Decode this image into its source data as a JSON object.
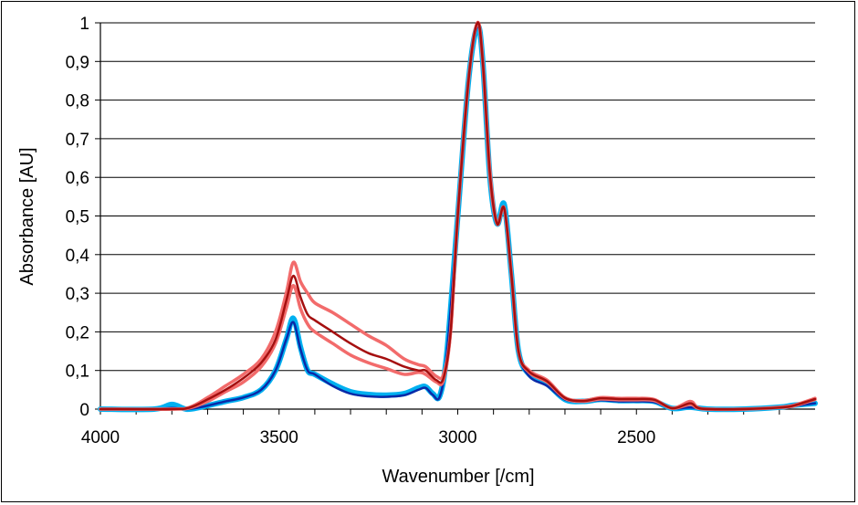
{
  "chart_data": {
    "type": "line",
    "title": "",
    "xlabel": "Wavenumber [/cm]",
    "ylabel": "Absorbance [AU]",
    "xlim": [
      4000,
      2000
    ],
    "ylim": [
      0,
      1
    ],
    "x_reversed": true,
    "grid": "horizontal",
    "legend": "none",
    "x_ticks": [
      4000,
      3500,
      3000,
      2500
    ],
    "x_tick_labels": [
      "4000",
      "3500",
      "3000",
      "2500"
    ],
    "y_ticks": [
      0,
      0.1,
      0.2,
      0.3,
      0.4,
      0.5,
      0.6,
      0.7,
      0.8,
      0.9,
      1
    ],
    "y_tick_labels": [
      "0",
      "0,1",
      "0,2",
      "0,3",
      "0,4",
      "0,5",
      "0,6",
      "0,7",
      "0,8",
      "0,9",
      "1"
    ],
    "series": [
      {
        "color": "#00b0f0",
        "width": 6,
        "points": [
          [
            4000,
            0
          ],
          [
            3850,
            0
          ],
          [
            3800,
            0.012
          ],
          [
            3760,
            0
          ],
          [
            3720,
            0.005
          ],
          [
            3650,
            0.02
          ],
          [
            3600,
            0.03
          ],
          [
            3550,
            0.05
          ],
          [
            3510,
            0.1
          ],
          [
            3480,
            0.18
          ],
          [
            3460,
            0.235
          ],
          [
            3440,
            0.16
          ],
          [
            3420,
            0.1
          ],
          [
            3400,
            0.09
          ],
          [
            3350,
            0.065
          ],
          [
            3300,
            0.045
          ],
          [
            3250,
            0.038
          ],
          [
            3200,
            0.036
          ],
          [
            3150,
            0.04
          ],
          [
            3110,
            0.055
          ],
          [
            3090,
            0.058
          ],
          [
            3070,
            0.04
          ],
          [
            3050,
            0.035
          ],
          [
            3030,
            0.15
          ],
          [
            3000,
            0.5
          ],
          [
            2970,
            0.85
          ],
          [
            2945,
            0.99
          ],
          [
            2930,
            0.9
          ],
          [
            2910,
            0.6
          ],
          [
            2890,
            0.48
          ],
          [
            2870,
            0.53
          ],
          [
            2850,
            0.35
          ],
          [
            2830,
            0.15
          ],
          [
            2800,
            0.09
          ],
          [
            2750,
            0.065
          ],
          [
            2700,
            0.025
          ],
          [
            2650,
            0.02
          ],
          [
            2600,
            0.025
          ],
          [
            2550,
            0.022
          ],
          [
            2500,
            0.022
          ],
          [
            2450,
            0.02
          ],
          [
            2400,
            0.002
          ],
          [
            2350,
            0.005
          ],
          [
            2300,
            0
          ],
          [
            2200,
            0
          ],
          [
            2100,
            0.005
          ],
          [
            2060,
            0.01
          ],
          [
            2000,
            0.015
          ]
        ]
      },
      {
        "color": "#0a2aa8",
        "width": 2.5,
        "points": [
          [
            4000,
            0
          ],
          [
            3850,
            0
          ],
          [
            3800,
            0.003
          ],
          [
            3760,
            0
          ],
          [
            3720,
            0.005
          ],
          [
            3650,
            0.02
          ],
          [
            3600,
            0.03
          ],
          [
            3550,
            0.05
          ],
          [
            3510,
            0.1
          ],
          [
            3480,
            0.18
          ],
          [
            3460,
            0.225
          ],
          [
            3440,
            0.155
          ],
          [
            3420,
            0.1
          ],
          [
            3400,
            0.09
          ],
          [
            3350,
            0.06
          ],
          [
            3300,
            0.04
          ],
          [
            3250,
            0.033
          ],
          [
            3200,
            0.032
          ],
          [
            3150,
            0.036
          ],
          [
            3110,
            0.05
          ],
          [
            3090,
            0.055
          ],
          [
            3070,
            0.037
          ],
          [
            3050,
            0.033
          ],
          [
            3030,
            0.15
          ],
          [
            3000,
            0.5
          ],
          [
            2970,
            0.85
          ],
          [
            2945,
            0.99
          ],
          [
            2930,
            0.9
          ],
          [
            2910,
            0.6
          ],
          [
            2890,
            0.48
          ],
          [
            2870,
            0.52
          ],
          [
            2850,
            0.35
          ],
          [
            2830,
            0.15
          ],
          [
            2800,
            0.085
          ],
          [
            2750,
            0.06
          ],
          [
            2700,
            0.025
          ],
          [
            2650,
            0.02
          ],
          [
            2600,
            0.023
          ],
          [
            2550,
            0.02
          ],
          [
            2500,
            0.02
          ],
          [
            2450,
            0.018
          ],
          [
            2400,
            0.002
          ],
          [
            2350,
            0.004
          ],
          [
            2300,
            0
          ],
          [
            2200,
            0
          ],
          [
            2100,
            0.004
          ],
          [
            2060,
            0.008
          ],
          [
            2000,
            0.015
          ]
        ]
      },
      {
        "color": "#f26b6b",
        "width": 3.5,
        "points": [
          [
            4000,
            0
          ],
          [
            3800,
            0
          ],
          [
            3750,
            0.005
          ],
          [
            3700,
            0.03
          ],
          [
            3650,
            0.06
          ],
          [
            3600,
            0.09
          ],
          [
            3550,
            0.13
          ],
          [
            3510,
            0.2
          ],
          [
            3480,
            0.3
          ],
          [
            3460,
            0.38
          ],
          [
            3440,
            0.33
          ],
          [
            3420,
            0.3
          ],
          [
            3400,
            0.275
          ],
          [
            3350,
            0.25
          ],
          [
            3300,
            0.22
          ],
          [
            3250,
            0.19
          ],
          [
            3200,
            0.165
          ],
          [
            3150,
            0.13
          ],
          [
            3110,
            0.115
          ],
          [
            3090,
            0.11
          ],
          [
            3060,
            0.085
          ],
          [
            3040,
            0.09
          ],
          [
            3020,
            0.2
          ],
          [
            3000,
            0.5
          ],
          [
            2970,
            0.85
          ],
          [
            2945,
            1
          ],
          [
            2930,
            0.9
          ],
          [
            2910,
            0.62
          ],
          [
            2890,
            0.48
          ],
          [
            2870,
            0.52
          ],
          [
            2850,
            0.35
          ],
          [
            2830,
            0.15
          ],
          [
            2800,
            0.1
          ],
          [
            2750,
            0.075
          ],
          [
            2700,
            0.03
          ],
          [
            2650,
            0.022
          ],
          [
            2600,
            0.03
          ],
          [
            2550,
            0.028
          ],
          [
            2500,
            0.028
          ],
          [
            2450,
            0.025
          ],
          [
            2400,
            0.002
          ],
          [
            2350,
            0.02
          ],
          [
            2330,
            0.005
          ],
          [
            2300,
            0
          ],
          [
            2200,
            0
          ],
          [
            2100,
            0.005
          ],
          [
            2060,
            0.01
          ],
          [
            2000,
            0.028
          ]
        ]
      },
      {
        "color": "#f26b6b",
        "width": 3.5,
        "points": [
          [
            4000,
            0
          ],
          [
            3800,
            0
          ],
          [
            3750,
            0.003
          ],
          [
            3700,
            0.02
          ],
          [
            3650,
            0.045
          ],
          [
            3600,
            0.07
          ],
          [
            3550,
            0.11
          ],
          [
            3510,
            0.17
          ],
          [
            3480,
            0.26
          ],
          [
            3460,
            0.32
          ],
          [
            3440,
            0.26
          ],
          [
            3420,
            0.22
          ],
          [
            3400,
            0.2
          ],
          [
            3350,
            0.17
          ],
          [
            3300,
            0.14
          ],
          [
            3250,
            0.12
          ],
          [
            3200,
            0.105
          ],
          [
            3150,
            0.09
          ],
          [
            3110,
            0.095
          ],
          [
            3090,
            0.09
          ],
          [
            3060,
            0.07
          ],
          [
            3040,
            0.075
          ],
          [
            3020,
            0.2
          ],
          [
            3000,
            0.5
          ],
          [
            2970,
            0.85
          ],
          [
            2945,
            1
          ],
          [
            2930,
            0.9
          ],
          [
            2910,
            0.6
          ],
          [
            2890,
            0.48
          ],
          [
            2870,
            0.52
          ],
          [
            2850,
            0.35
          ],
          [
            2830,
            0.15
          ],
          [
            2800,
            0.095
          ],
          [
            2750,
            0.07
          ],
          [
            2700,
            0.028
          ],
          [
            2650,
            0.02
          ],
          [
            2600,
            0.026
          ],
          [
            2550,
            0.024
          ],
          [
            2500,
            0.024
          ],
          [
            2450,
            0.022
          ],
          [
            2400,
            0.002
          ],
          [
            2350,
            0.012
          ],
          [
            2330,
            0.003
          ],
          [
            2300,
            0
          ],
          [
            2200,
            0
          ],
          [
            2100,
            0.004
          ],
          [
            2060,
            0.008
          ],
          [
            2000,
            0.025
          ]
        ]
      },
      {
        "color": "#a50f0f",
        "width": 2.5,
        "points": [
          [
            4000,
            0
          ],
          [
            3800,
            0
          ],
          [
            3750,
            0.004
          ],
          [
            3700,
            0.025
          ],
          [
            3650,
            0.05
          ],
          [
            3600,
            0.08
          ],
          [
            3550,
            0.12
          ],
          [
            3510,
            0.18
          ],
          [
            3480,
            0.28
          ],
          [
            3460,
            0.345
          ],
          [
            3440,
            0.29
          ],
          [
            3420,
            0.245
          ],
          [
            3400,
            0.23
          ],
          [
            3350,
            0.2
          ],
          [
            3300,
            0.17
          ],
          [
            3250,
            0.145
          ],
          [
            3200,
            0.13
          ],
          [
            3150,
            0.11
          ],
          [
            3110,
            0.1
          ],
          [
            3090,
            0.1
          ],
          [
            3060,
            0.075
          ],
          [
            3040,
            0.08
          ],
          [
            3020,
            0.2
          ],
          [
            3000,
            0.5
          ],
          [
            2970,
            0.85
          ],
          [
            2945,
            1
          ],
          [
            2930,
            0.9
          ],
          [
            2910,
            0.61
          ],
          [
            2890,
            0.48
          ],
          [
            2870,
            0.52
          ],
          [
            2850,
            0.35
          ],
          [
            2830,
            0.15
          ],
          [
            2800,
            0.097
          ],
          [
            2750,
            0.072
          ],
          [
            2700,
            0.029
          ],
          [
            2650,
            0.021
          ],
          [
            2600,
            0.028
          ],
          [
            2550,
            0.026
          ],
          [
            2500,
            0.026
          ],
          [
            2450,
            0.024
          ],
          [
            2400,
            0.002
          ],
          [
            2350,
            0.015
          ],
          [
            2330,
            0.004
          ],
          [
            2300,
            0
          ],
          [
            2200,
            0
          ],
          [
            2100,
            0.004
          ],
          [
            2060,
            0.009
          ],
          [
            2000,
            0.026
          ]
        ]
      }
    ]
  }
}
